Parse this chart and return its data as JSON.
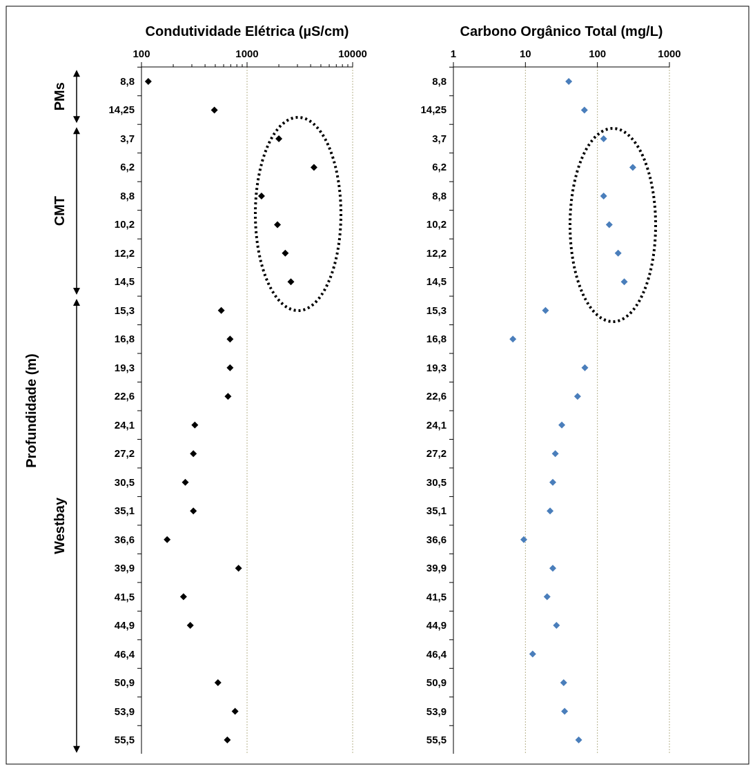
{
  "chart_data": [
    {
      "type": "scatter",
      "title": "Condutividade Elétrica (µS/cm)",
      "ylabel": "Profundidade (m)",
      "log": "x",
      "xlim": [
        100,
        10000
      ],
      "xticks": [
        100,
        {
          "value": 200,
          "label": null
        },
        {
          "value": 300,
          "label": null
        },
        {
          "value": 400,
          "label": null
        },
        {
          "value": 500,
          "label": null
        },
        {
          "value": 600,
          "label": null
        },
        {
          "value": 700,
          "label": null
        },
        {
          "value": 800,
          "label": null
        },
        {
          "value": 900,
          "label": null
        },
        1000,
        {
          "value": 2000,
          "label": null
        },
        {
          "value": 3000,
          "label": null
        },
        {
          "value": 4000,
          "label": null
        },
        {
          "value": 5000,
          "label": null
        },
        {
          "value": 6000,
          "label": null
        },
        {
          "value": 7000,
          "label": null
        },
        {
          "value": 8000,
          "label": null
        },
        {
          "value": 9000,
          "label": null
        },
        10000
      ],
      "ref_lines": [
        {
          "axis": "x",
          "value": 1000,
          "color": "#b5b08a",
          "line_style": "dotted"
        },
        {
          "axis": "x",
          "value": 10000,
          "color": "#b5b08a",
          "line_style": "dotted"
        }
      ],
      "marker": "diamond",
      "orientation": "horizontal",
      "categories": [
        "8,8",
        "14,25",
        "3,7",
        "6,2",
        "8,8",
        "10,2",
        "12,2",
        "14,5",
        "15,3",
        "16,8",
        "19,3",
        "22,6",
        "24,1",
        "27,2",
        "30,5",
        "35,1",
        "36,6",
        "39,9",
        "41,5",
        "44,9",
        "46,4",
        "50,9",
        "53,9",
        "55,5"
      ],
      "series": [
        {
          "color": "#000000",
          "values": [
            116,
            490,
            2000,
            4300,
            1370,
            1940,
            2300,
            2600,
            570,
            690,
            690,
            660,
            320,
            310,
            260,
            310,
            175,
            830,
            250,
            290,
            null,
            530,
            770,
            650
          ]
        }
      ],
      "annotations": [
        "PMs",
        "CMT",
        "Westbay"
      ]
    },
    {
      "type": "scatter",
      "title": "Carbono Orgânico Total (mg/L)",
      "log": "x",
      "xlim": [
        1,
        1000
      ],
      "xticks": [
        1,
        10,
        100,
        1000
      ],
      "grid": "x",
      "marker": "diamond",
      "orientation": "horizontal",
      "categories": [
        "8,8",
        "14,25",
        "3,7",
        "6,2",
        "8,8",
        "10,2",
        "12,2",
        "14,5",
        "15,3",
        "16,8",
        "19,3",
        "22,6",
        "24,1",
        "27,2",
        "30,5",
        "35,1",
        "36,6",
        "39,9",
        "41,5",
        "44,9",
        "46,4",
        "50,9",
        "53,9",
        "55,5"
      ],
      "series": [
        {
          "color": "#4a7ebb",
          "values": [
            40,
            66,
            122,
            310,
            122,
            146,
            194,
            236,
            19,
            6.7,
            67,
            53,
            32,
            26,
            24,
            22,
            9.5,
            24,
            20,
            27,
            12.6,
            34,
            35,
            55
          ]
        }
      ]
    }
  ]
}
